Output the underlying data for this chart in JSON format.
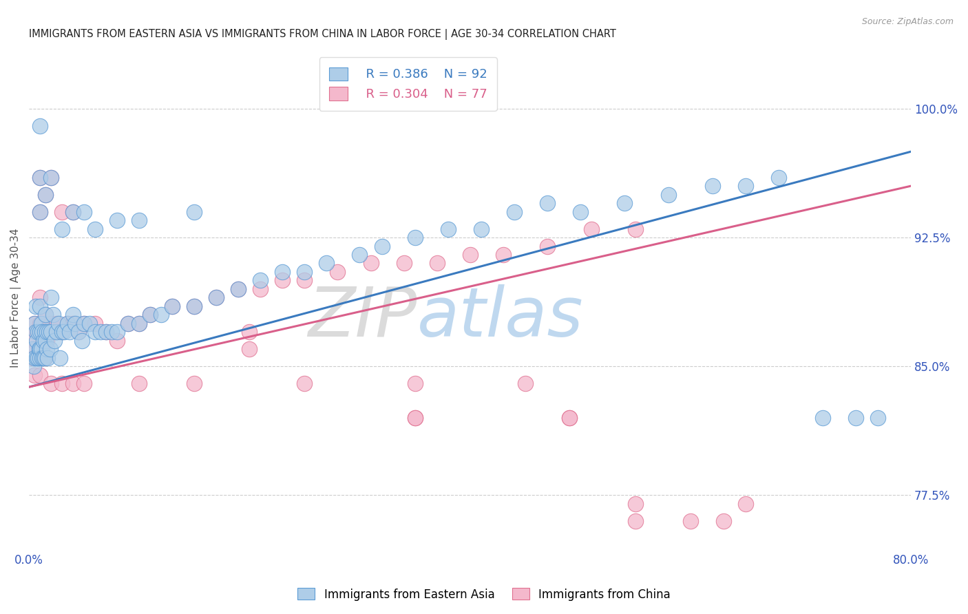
{
  "title": "IMMIGRANTS FROM EASTERN ASIA VS IMMIGRANTS FROM CHINA IN LABOR FORCE | AGE 30-34 CORRELATION CHART",
  "source": "Source: ZipAtlas.com",
  "ylabel": "In Labor Force | Age 30-34",
  "xlim": [
    0.0,
    0.8
  ],
  "ylim": [
    0.745,
    1.035
  ],
  "xtick_positions": [
    0.0,
    0.1,
    0.2,
    0.3,
    0.4,
    0.5,
    0.6,
    0.7,
    0.8
  ],
  "xticklabels": [
    "0.0%",
    "",
    "",
    "",
    "",
    "",
    "",
    "",
    "80.0%"
  ],
  "ytick_labels_right": [
    "77.5%",
    "85.0%",
    "92.5%",
    "100.0%"
  ],
  "ytick_values_right": [
    0.775,
    0.85,
    0.925,
    1.0
  ],
  "legend_blue_r": "0.386",
  "legend_blue_n": "92",
  "legend_pink_r": "0.304",
  "legend_pink_n": "77",
  "legend_label_blue": "Immigrants from Eastern Asia",
  "legend_label_pink": "Immigrants from China",
  "color_blue_fill": "#aecde8",
  "color_blue_edge": "#5b9bd5",
  "color_pink_fill": "#f4b8cc",
  "color_pink_edge": "#e07090",
  "color_line_blue": "#3a7abf",
  "color_line_pink": "#d95f8a",
  "color_axis_text": "#3355bb",
  "color_title": "#222222",
  "watermark_zip": "ZIP",
  "watermark_atlas": "atlas",
  "blue_line_x0": 0.0,
  "blue_line_y0": 0.838,
  "blue_line_x1": 0.8,
  "blue_line_y1": 0.975,
  "pink_line_x0": 0.0,
  "pink_line_y0": 0.838,
  "pink_line_x1": 0.8,
  "pink_line_y1": 0.955,
  "blue_x": [
    0.003,
    0.004,
    0.005,
    0.005,
    0.006,
    0.006,
    0.007,
    0.007,
    0.008,
    0.008,
    0.009,
    0.01,
    0.01,
    0.01,
    0.01,
    0.01,
    0.011,
    0.011,
    0.012,
    0.012,
    0.013,
    0.013,
    0.014,
    0.014,
    0.015,
    0.015,
    0.016,
    0.016,
    0.017,
    0.018,
    0.019,
    0.02,
    0.02,
    0.022,
    0.023,
    0.025,
    0.027,
    0.028,
    0.03,
    0.032,
    0.035,
    0.037,
    0.04,
    0.042,
    0.045,
    0.048,
    0.05,
    0.055,
    0.06,
    0.065,
    0.07,
    0.075,
    0.08,
    0.09,
    0.1,
    0.11,
    0.12,
    0.13,
    0.15,
    0.17,
    0.19,
    0.21,
    0.23,
    0.25,
    0.27,
    0.3,
    0.32,
    0.35,
    0.38,
    0.41,
    0.44,
    0.47,
    0.5,
    0.54,
    0.58,
    0.62,
    0.65,
    0.68,
    0.72,
    0.75,
    0.77,
    0.01,
    0.01,
    0.015,
    0.02,
    0.03,
    0.04,
    0.05,
    0.06,
    0.08,
    0.1,
    0.15
  ],
  "blue_y": [
    0.86,
    0.85,
    0.875,
    0.855,
    0.87,
    0.885,
    0.865,
    0.855,
    0.87,
    0.855,
    0.86,
    0.99,
    0.885,
    0.87,
    0.86,
    0.855,
    0.875,
    0.86,
    0.87,
    0.855,
    0.865,
    0.855,
    0.87,
    0.855,
    0.88,
    0.865,
    0.87,
    0.86,
    0.855,
    0.87,
    0.86,
    0.89,
    0.87,
    0.88,
    0.865,
    0.87,
    0.875,
    0.855,
    0.87,
    0.87,
    0.875,
    0.87,
    0.88,
    0.875,
    0.87,
    0.865,
    0.875,
    0.875,
    0.87,
    0.87,
    0.87,
    0.87,
    0.87,
    0.875,
    0.875,
    0.88,
    0.88,
    0.885,
    0.885,
    0.89,
    0.895,
    0.9,
    0.905,
    0.905,
    0.91,
    0.915,
    0.92,
    0.925,
    0.93,
    0.93,
    0.94,
    0.945,
    0.94,
    0.945,
    0.95,
    0.955,
    0.955,
    0.96,
    0.82,
    0.82,
    0.82,
    0.94,
    0.96,
    0.95,
    0.96,
    0.93,
    0.94,
    0.94,
    0.93,
    0.935,
    0.935,
    0.94
  ],
  "pink_x": [
    0.003,
    0.004,
    0.005,
    0.006,
    0.007,
    0.008,
    0.009,
    0.01,
    0.01,
    0.01,
    0.011,
    0.012,
    0.013,
    0.014,
    0.015,
    0.016,
    0.017,
    0.018,
    0.02,
    0.022,
    0.025,
    0.028,
    0.03,
    0.035,
    0.04,
    0.045,
    0.05,
    0.06,
    0.07,
    0.08,
    0.09,
    0.1,
    0.11,
    0.13,
    0.15,
    0.17,
    0.19,
    0.21,
    0.23,
    0.25,
    0.28,
    0.31,
    0.34,
    0.37,
    0.4,
    0.43,
    0.47,
    0.51,
    0.55,
    0.01,
    0.01,
    0.015,
    0.02,
    0.03,
    0.04,
    0.2,
    0.2,
    0.35,
    0.35,
    0.49,
    0.49,
    0.005,
    0.01,
    0.02,
    0.03,
    0.04,
    0.05,
    0.1,
    0.15,
    0.25,
    0.35,
    0.45,
    0.55,
    0.55,
    0.6,
    0.63,
    0.65
  ],
  "pink_y": [
    0.855,
    0.865,
    0.875,
    0.86,
    0.87,
    0.855,
    0.87,
    0.855,
    0.89,
    0.875,
    0.87,
    0.86,
    0.865,
    0.855,
    0.88,
    0.865,
    0.87,
    0.87,
    0.875,
    0.87,
    0.875,
    0.87,
    0.87,
    0.875,
    0.875,
    0.87,
    0.875,
    0.875,
    0.87,
    0.865,
    0.875,
    0.875,
    0.88,
    0.885,
    0.885,
    0.89,
    0.895,
    0.895,
    0.9,
    0.9,
    0.905,
    0.91,
    0.91,
    0.91,
    0.915,
    0.915,
    0.92,
    0.93,
    0.93,
    0.94,
    0.96,
    0.95,
    0.96,
    0.94,
    0.94,
    0.87,
    0.86,
    0.82,
    0.82,
    0.82,
    0.82,
    0.845,
    0.845,
    0.84,
    0.84,
    0.84,
    0.84,
    0.84,
    0.84,
    0.84,
    0.84,
    0.84,
    0.77,
    0.76,
    0.76,
    0.76,
    0.77
  ]
}
